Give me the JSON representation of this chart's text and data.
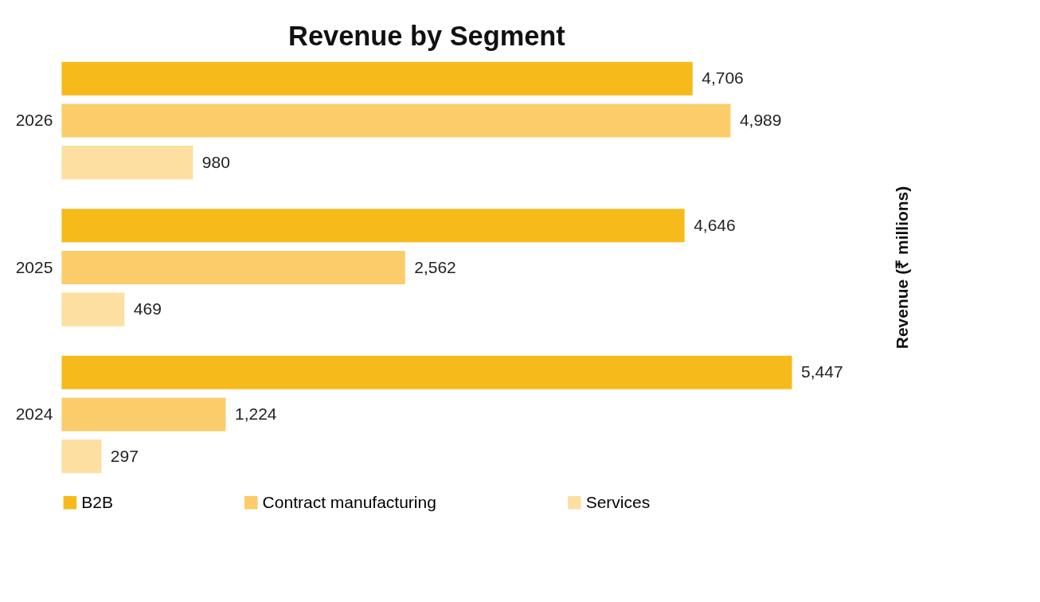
{
  "chart_data": {
    "type": "bar",
    "orientation": "horizontal",
    "title": "Revenue by Segment",
    "annotations": [
      "Revenue (₹ millions)"
    ],
    "categories": [
      "2026",
      "2025",
      "2024"
    ],
    "series": [
      {
        "name": "B2B",
        "color": "#f6bb1b",
        "values": [
          4706,
          4646,
          5447
        ],
        "value_labels": [
          "4,706",
          "4,646",
          "5,447"
        ]
      },
      {
        "name": "Contract manufacturing",
        "color": "#fbcc6a",
        "values": [
          4989,
          2562,
          1224
        ],
        "value_labels": [
          "4,989",
          "2,562",
          "1,224"
        ]
      },
      {
        "name": "Services",
        "color": "#fddfa2",
        "values": [
          980,
          469,
          297
        ],
        "value_labels": [
          "980",
          "469",
          "297"
        ]
      }
    ],
    "legend": "bottom",
    "grid": false
  }
}
